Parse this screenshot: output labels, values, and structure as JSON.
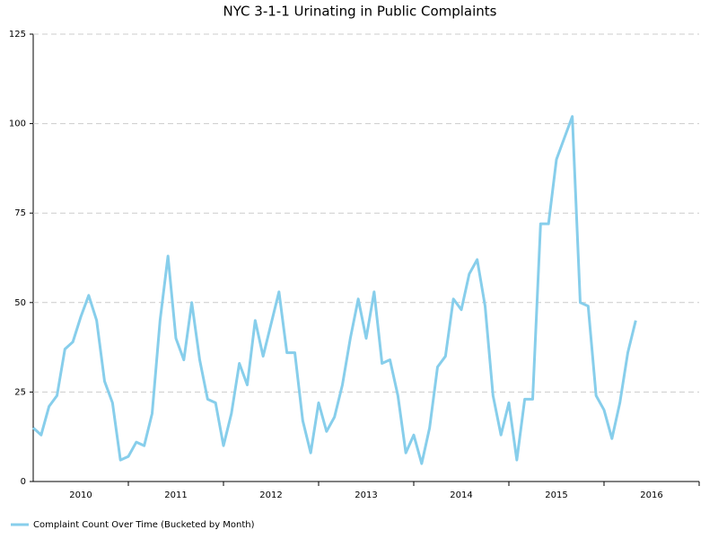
{
  "chart_data": {
    "type": "line",
    "title": "NYC 3-1-1 Urinating in Public Complaints",
    "categories": [
      null,
      null,
      null,
      null,
      null,
      null,
      "2010",
      null,
      null,
      null,
      null,
      null,
      null,
      null,
      null,
      null,
      null,
      null,
      "2011",
      null,
      null,
      null,
      null,
      null,
      null,
      null,
      null,
      null,
      null,
      null,
      "2012",
      null,
      null,
      null,
      null,
      null,
      null,
      null,
      null,
      null,
      null,
      null,
      "2013",
      null,
      null,
      null,
      null,
      null,
      null,
      null,
      null,
      null,
      null,
      null,
      "2014",
      null,
      null,
      null,
      null,
      null,
      null,
      null,
      null,
      null,
      null,
      null,
      "2015",
      null,
      null,
      null,
      null,
      null,
      null,
      null,
      null,
      null,
      null,
      null,
      "2016",
      null,
      null,
      null,
      null,
      null
    ],
    "series": [
      {
        "name": "Complaint Count Over Time (Bucketed by Month)",
        "color": "#87ceeb",
        "values": [
          15,
          13,
          21,
          24,
          37,
          39,
          46,
          52,
          45,
          28,
          22,
          6,
          7,
          11,
          10,
          19,
          45,
          63,
          40,
          34,
          50,
          34,
          23,
          22,
          10,
          19,
          33,
          27,
          45,
          35,
          44,
          53,
          36,
          36,
          17,
          8,
          22,
          14,
          18,
          27,
          40,
          51,
          40,
          53,
          33,
          34,
          24,
          8,
          13,
          5,
          15,
          32,
          35,
          51,
          48,
          58,
          62,
          49,
          24,
          13,
          22,
          6,
          23,
          23,
          72,
          72,
          90,
          96,
          102,
          50,
          49,
          24,
          20,
          12,
          22,
          36,
          45,
          null,
          null,
          null,
          null,
          null,
          null,
          null
        ]
      }
    ],
    "ylim": [
      0,
      125
    ],
    "yticks": [
      0,
      25,
      50,
      75,
      100,
      125
    ],
    "grid": true,
    "legend": "bottom-left"
  }
}
